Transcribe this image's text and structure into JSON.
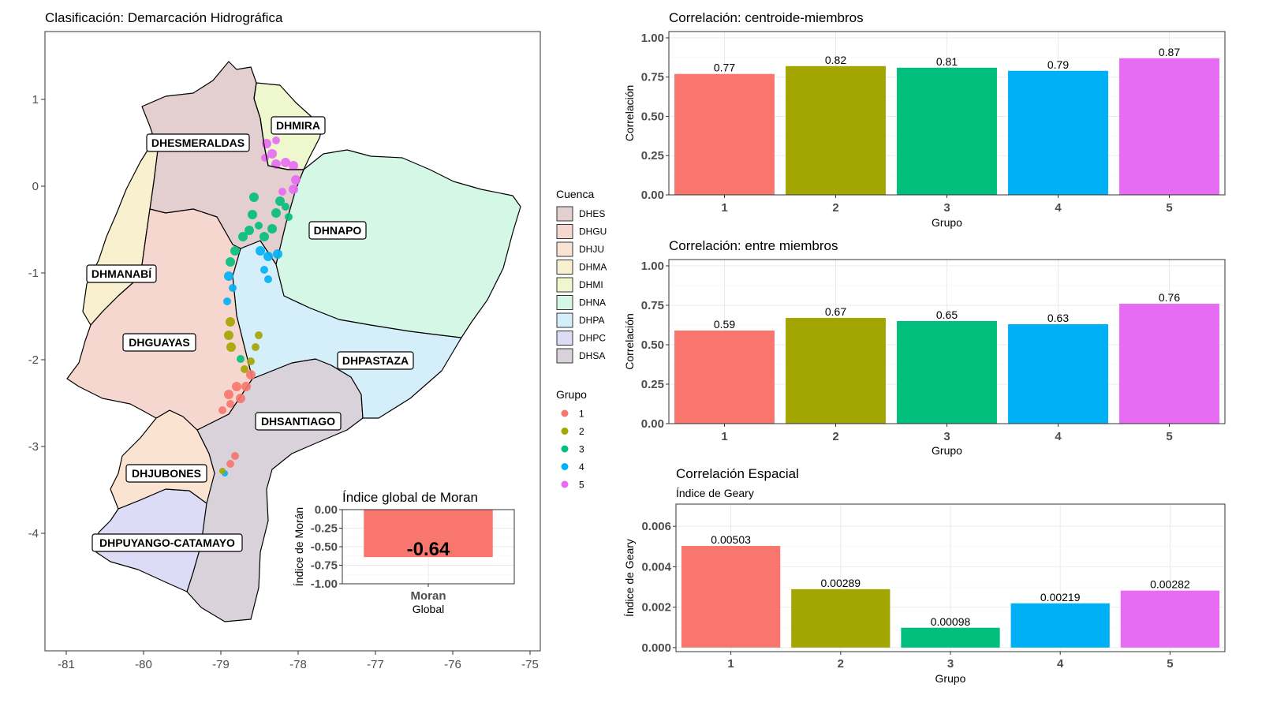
{
  "map_panel": {
    "title": "Clasificación: Demarcación Hidrográfica",
    "x_ticks": [
      "-81",
      "-80",
      "-79",
      "-78",
      "-77",
      "-76",
      "-75"
    ],
    "y_ticks": [
      "1",
      "0",
      "-1",
      "-2",
      "-3",
      "-4"
    ],
    "region_labels": [
      "DHESMERALDAS",
      "DHMIRA",
      "DHNAPO",
      "DHMANABÍ",
      "DHGUAYAS",
      "DHPASTAZA",
      "DHSANTIAGO",
      "DHJUBONES",
      "DHPUYANGO-CATAMAYO"
    ],
    "regions": [
      {
        "code": "DHES",
        "color": "#e3cfcf"
      },
      {
        "code": "DHGU",
        "color": "#f6d7cf"
      },
      {
        "code": "DHJU",
        "color": "#fae3d0"
      },
      {
        "code": "DHMA",
        "color": "#f8f0cf"
      },
      {
        "code": "DHMI",
        "color": "#eff7cf"
      },
      {
        "code": "DHNA",
        "color": "#d4f7e6"
      },
      {
        "code": "DHPA",
        "color": "#d4eff9"
      },
      {
        "code": "DHPC",
        "color": "#dcdcf7"
      },
      {
        "code": "DHSA",
        "color": "#d9d2da"
      }
    ],
    "legend_cuenca_title": "Cuenca",
    "legend_grupo_title": "Grupo",
    "groups": [
      {
        "label": "1",
        "color": "#F8766D"
      },
      {
        "label": "2",
        "color": "#A3A500"
      },
      {
        "label": "3",
        "color": "#00BF7D"
      },
      {
        "label": "4",
        "color": "#00B0F6"
      },
      {
        "label": "5",
        "color": "#E76BF3"
      }
    ]
  },
  "chart_data": [
    {
      "type": "bar",
      "title": "Índice global de Moran",
      "categories": [
        "Moran"
      ],
      "values": [
        -0.64
      ],
      "value_labels": [
        "-0.64"
      ],
      "xlabel": "Global",
      "ylabel": "Índice de Morán",
      "ylim": [
        -1.0,
        0.0
      ],
      "y_ticks": [
        "0.00",
        "-0.25",
        "-0.50",
        "-0.75",
        "-1.00"
      ],
      "color": "#F8766D"
    },
    {
      "type": "bar",
      "title": "Correlación: centroide-miembros",
      "categories": [
        "1",
        "2",
        "3",
        "4",
        "5"
      ],
      "values": [
        0.77,
        0.82,
        0.81,
        0.79,
        0.87
      ],
      "value_labels": [
        "0.77",
        "0.82",
        "0.81",
        "0.79",
        "0.87"
      ],
      "xlabel": "Grupo",
      "ylabel": "Correlación",
      "ylim": [
        0,
        1.04
      ],
      "y_ticks": [
        "0.00",
        "0.25",
        "0.50",
        "0.75",
        "1.00"
      ],
      "colors": [
        "#F8766D",
        "#A3A500",
        "#00BF7D",
        "#00B0F6",
        "#E76BF3"
      ]
    },
    {
      "type": "bar",
      "title": "Correlación: entre miembros",
      "categories": [
        "1",
        "2",
        "3",
        "4",
        "5"
      ],
      "values": [
        0.59,
        0.67,
        0.65,
        0.63,
        0.76
      ],
      "value_labels": [
        "0.59",
        "0.67",
        "0.65",
        "0.63",
        "0.76"
      ],
      "xlabel": "Grupo",
      "ylabel": "Correlación",
      "ylim": [
        0,
        1.04
      ],
      "y_ticks": [
        "0.00",
        "0.25",
        "0.50",
        "0.75",
        "1.00"
      ],
      "colors": [
        "#F8766D",
        "#A3A500",
        "#00BF7D",
        "#00B0F6",
        "#E76BF3"
      ]
    },
    {
      "type": "bar",
      "title": "Correlación Espacial",
      "subtitle": "Índice de Geary",
      "categories": [
        "1",
        "2",
        "3",
        "4",
        "5"
      ],
      "values": [
        0.00503,
        0.00289,
        0.00098,
        0.00219,
        0.00282
      ],
      "value_labels": [
        "0.00503",
        "0.00289",
        "0.00098",
        "0.00219",
        "0.00282"
      ],
      "xlabel": "Grupo",
      "ylabel": "Índice de Geary",
      "ylim": [
        -0.0002,
        0.0071
      ],
      "y_ticks": [
        "0.000",
        "0.002",
        "0.004",
        "0.006"
      ],
      "colors": [
        "#F8766D",
        "#A3A500",
        "#00BF7D",
        "#00B0F6",
        "#E76BF3"
      ]
    }
  ]
}
